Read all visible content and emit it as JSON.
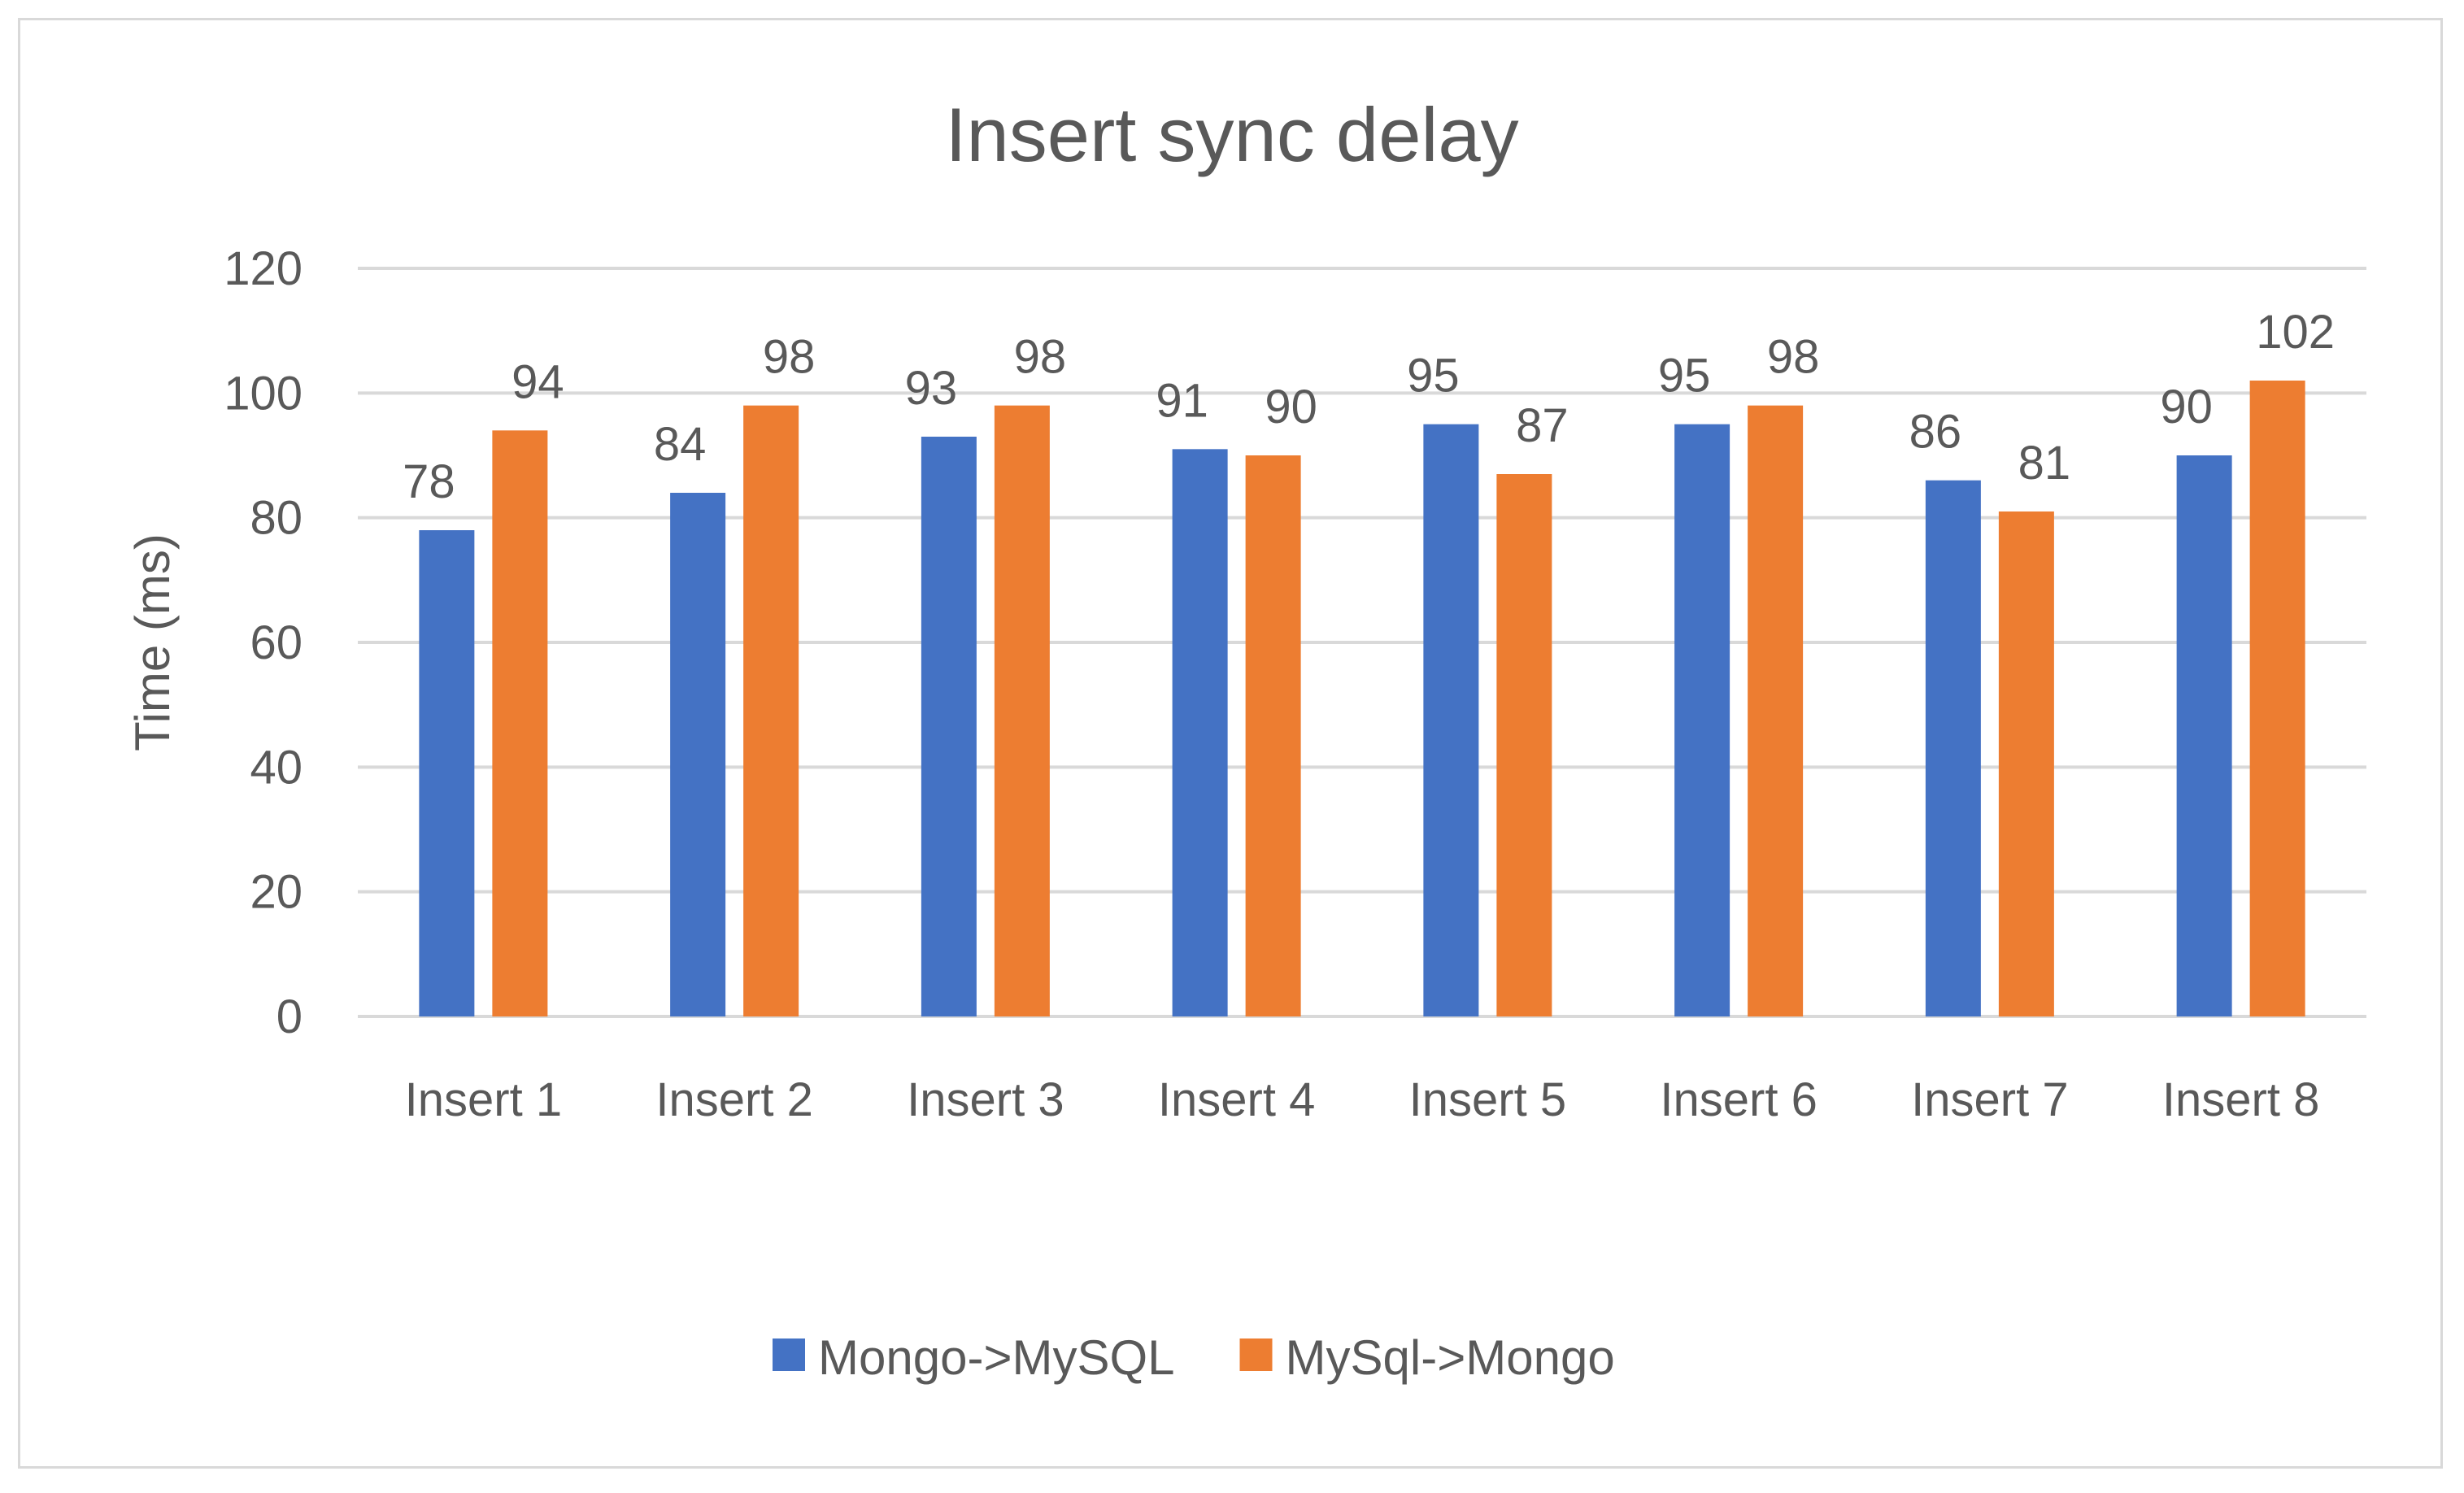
{
  "chart_data": {
    "type": "bar",
    "title": "Insert sync delay",
    "xlabel": "",
    "ylabel": "Time (ms)",
    "ylim": [
      0,
      120
    ],
    "yticks": [
      0,
      20,
      40,
      60,
      80,
      100,
      120
    ],
    "grid": true,
    "legend_position": "bottom",
    "categories": [
      "Insert 1",
      "Insert 2",
      "Insert 3",
      "Insert 4",
      "Insert 5",
      "Insert 6",
      "Insert 7",
      "Insert 8"
    ],
    "series": [
      {
        "name": "Mongo->MySQL",
        "color": "#4472c4",
        "values": [
          78,
          84,
          93,
          91,
          95,
          95,
          86,
          90
        ]
      },
      {
        "name": "MySql->Mongo",
        "color": "#ed7d31",
        "values": [
          94,
          98,
          98,
          90,
          87,
          98,
          81,
          102
        ]
      }
    ]
  }
}
